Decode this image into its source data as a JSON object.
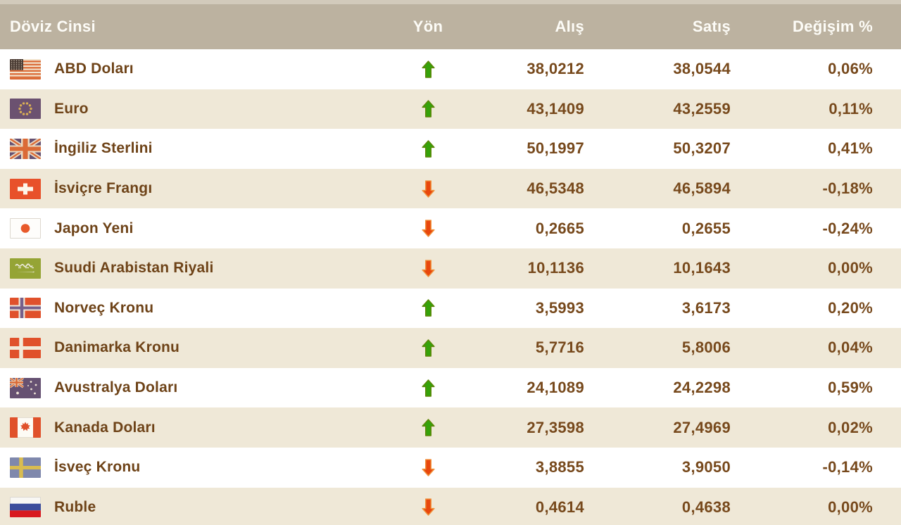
{
  "table": {
    "columns": {
      "currency": "Döviz Cinsi",
      "direction": "Yön",
      "buy": "Alış",
      "sell": "Satış",
      "change_pct": "Değişim %"
    },
    "rows": [
      {
        "currency": "ABD Doları",
        "flag": "us-flag-icon",
        "direction": "up",
        "buy": "38,0212",
        "sell": "38,0544",
        "change_pct": "0,06%"
      },
      {
        "currency": "Euro",
        "flag": "eu-flag-icon",
        "direction": "up",
        "buy": "43,1409",
        "sell": "43,2559",
        "change_pct": "0,11%"
      },
      {
        "currency": "İngiliz Sterlini",
        "flag": "uk-flag-icon",
        "direction": "up",
        "buy": "50,1997",
        "sell": "50,3207",
        "change_pct": "0,41%"
      },
      {
        "currency": "İsviçre Frangı",
        "flag": "switzerland-flag-icon",
        "direction": "down",
        "buy": "46,5348",
        "sell": "46,5894",
        "change_pct": "-0,18%"
      },
      {
        "currency": "Japon Yeni",
        "flag": "japan-flag-icon",
        "direction": "down",
        "buy": "0,2665",
        "sell": "0,2655",
        "change_pct": "-0,24%"
      },
      {
        "currency": "Suudi Arabistan Riyali",
        "flag": "saudi-arabia-flag-icon",
        "direction": "down",
        "buy": "10,1136",
        "sell": "10,1643",
        "change_pct": "0,00%"
      },
      {
        "currency": "Norveç Kronu",
        "flag": "norway-flag-icon",
        "direction": "up",
        "buy": "3,5993",
        "sell": "3,6173",
        "change_pct": "0,20%"
      },
      {
        "currency": "Danimarka Kronu",
        "flag": "denmark-flag-icon",
        "direction": "up",
        "buy": "5,7716",
        "sell": "5,8006",
        "change_pct": "0,04%"
      },
      {
        "currency": "Avustralya Doları",
        "flag": "australia-flag-icon",
        "direction": "up",
        "buy": "24,1089",
        "sell": "24,2298",
        "change_pct": "0,59%"
      },
      {
        "currency": "Kanada Doları",
        "flag": "canada-flag-icon",
        "direction": "up",
        "buy": "27,3598",
        "sell": "27,4969",
        "change_pct": "0,02%"
      },
      {
        "currency": "İsveç Kronu",
        "flag": "sweden-flag-icon",
        "direction": "down",
        "buy": "3,8855",
        "sell": "3,9050",
        "change_pct": "-0,14%"
      },
      {
        "currency": "Ruble",
        "flag": "russia-flag-icon",
        "direction": "down",
        "buy": "0,4614",
        "sell": "0,4638",
        "change_pct": "0,00%"
      }
    ]
  },
  "icons": {
    "up_arrow": "up-arrow-icon",
    "down_arrow": "down-arrow-icon"
  },
  "colors": {
    "header_bg": "#bcb2a0",
    "header_text": "#fdfcf7",
    "row_bg": "#ffffff",
    "row_alt_bg": "#efe8d7",
    "text_brown": "#6e4318",
    "up_arrow_green": "#35a20a",
    "down_arrow_orange": "#e8470d"
  }
}
